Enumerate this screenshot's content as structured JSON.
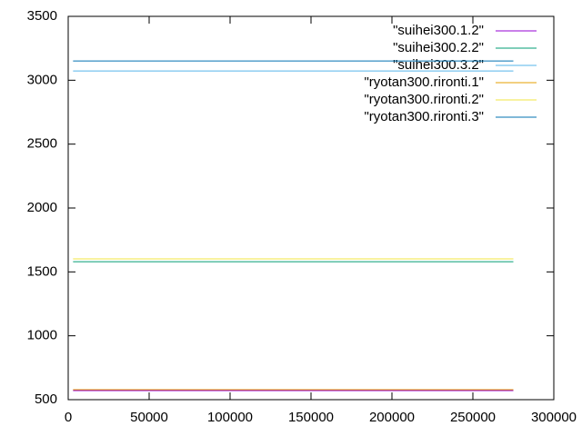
{
  "chart_data": {
    "type": "line",
    "x": [
      3000,
      275000
    ],
    "series": [
      {
        "name": "\"suihei300.1.2\"",
        "color": "#9400d3",
        "values": [
          571,
          571
        ]
      },
      {
        "name": "\"suihei300.2.2\"",
        "color": "#009e73",
        "values": [
          1580,
          1580
        ]
      },
      {
        "name": "\"suihei300.3.2\"",
        "color": "#56b4e9",
        "values": [
          3073,
          3073
        ]
      },
      {
        "name": "\"ryotan300.rironti.1\"",
        "color": "#e69f00",
        "values": [
          578,
          578
        ]
      },
      {
        "name": "\"ryotan300.rironti.2\"",
        "color": "#f0e442",
        "values": [
          1602,
          1602
        ]
      },
      {
        "name": "\"ryotan300.rironti.3\"",
        "color": "#0072b2",
        "values": [
          3151,
          3151
        ]
      }
    ],
    "xlim": [
      0,
      300000
    ],
    "xticks": [
      0,
      50000,
      100000,
      150000,
      200000,
      250000,
      300000
    ],
    "ylim": [
      500,
      3500
    ],
    "yticks": [
      500,
      1000,
      1500,
      2000,
      2500,
      3000,
      3500
    ],
    "grid": false,
    "legend": "upper right"
  }
}
